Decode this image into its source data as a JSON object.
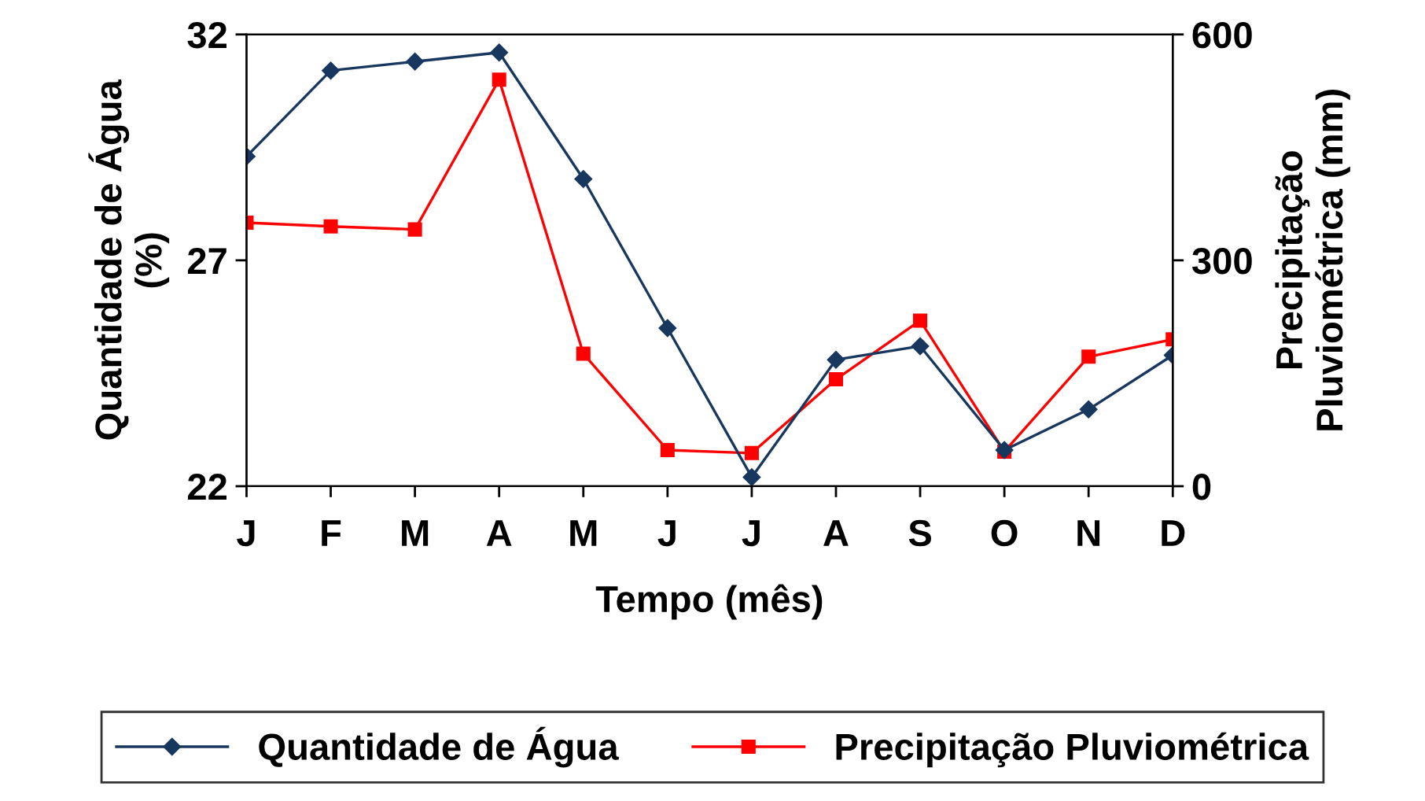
{
  "chart_data": {
    "type": "line",
    "xlabel": "Tempo (mês)",
    "ylabel": "Quantidade de Água\n(%)",
    "y2label": "Precipitação\nPluviométrica (mm)",
    "categories": [
      "J",
      "F",
      "M",
      "A",
      "M",
      "J",
      "J",
      "A",
      "S",
      "O",
      "N",
      "D"
    ],
    "series": [
      {
        "name": "Quantidade de Água",
        "color": "#17375e",
        "marker": "diamond",
        "values": [
          29.3,
          31.2,
          31.4,
          31.6,
          28.8,
          25.5,
          22.2,
          24.8,
          25.1,
          22.8,
          23.7,
          24.9
        ]
      },
      {
        "name": "Precipitação Pluviométrica",
        "color": "#ff0000",
        "marker": "square",
        "axis": "y2",
        "values": [
          350,
          345,
          341,
          540,
          176,
          48,
          44,
          142,
          220,
          46,
          172,
          195
        ]
      }
    ],
    "ylim": [
      22,
      32
    ],
    "yticks": [
      22,
      27,
      32
    ],
    "y2lim": [
      0,
      600
    ],
    "y2ticks": [
      0,
      300,
      600
    ],
    "grid": false,
    "legend": "bottom",
    "line_style": "solid"
  }
}
